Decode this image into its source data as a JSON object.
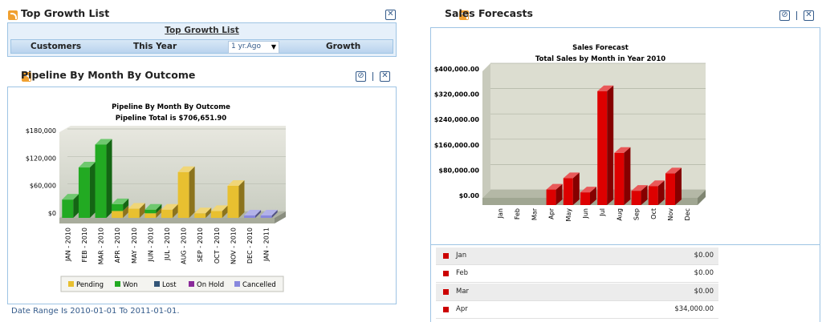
{
  "top_growth": {
    "title": "Top Growth List",
    "link": "Top Growth List",
    "col_customers": "Customers",
    "col_this_year": "This Year",
    "select_value": "1 yr.Ago",
    "col_growth": "Growth"
  },
  "pipeline": {
    "title": "Pipeline By Month By Outcome",
    "date_range": "Date Range Is 2010-01-01 To 2011-01-01."
  },
  "sales": {
    "title": "Sales Forecasts"
  },
  "forecast_rows": [
    {
      "month": "Jan",
      "value": "$0.00"
    },
    {
      "month": "Feb",
      "value": "$0.00"
    },
    {
      "month": "Mar",
      "value": "$0.00"
    },
    {
      "month": "Apr",
      "value": "$34,000.00"
    }
  ],
  "chart_data": [
    {
      "type": "bar",
      "title": "Pipeline By Month By Outcome",
      "subtitle": "Pipeline Total is $706,651.90",
      "categories": [
        "JAN - 2010",
        "FEB - 2010",
        "MAR - 2010",
        "APR - 2010",
        "MAY - 2010",
        "JUN - 2010",
        "JUL - 2010",
        "AUG - 2010",
        "SEP - 2010",
        "OCT - 2010",
        "NOV - 2010",
        "DEC - 2010",
        "JAN - 2011"
      ],
      "stacked": true,
      "series": [
        {
          "name": "Pending",
          "color": "#e8c030",
          "values": [
            0,
            0,
            0,
            15000,
            20000,
            10000,
            18000,
            100000,
            10000,
            15000,
            70000,
            0,
            0
          ]
        },
        {
          "name": "Won",
          "color": "#22aa22",
          "values": [
            40000,
            110000,
            160000,
            15000,
            0,
            8000,
            0,
            0,
            0,
            0,
            0,
            0,
            0
          ]
        },
        {
          "name": "Lost",
          "color": "#335577",
          "values": [
            0,
            0,
            0,
            0,
            0,
            0,
            0,
            0,
            0,
            0,
            0,
            0,
            0
          ]
        },
        {
          "name": "On Hold",
          "color": "#8a2a9a",
          "values": [
            0,
            0,
            0,
            0,
            0,
            0,
            0,
            0,
            0,
            0,
            0,
            0,
            0
          ]
        },
        {
          "name": "Cancelled",
          "color": "#8888dd",
          "values": [
            0,
            0,
            0,
            0,
            0,
            0,
            0,
            0,
            0,
            0,
            0,
            0,
            0
          ]
        }
      ],
      "ylim": [
        0,
        180000
      ],
      "yticks": [
        "$0",
        "$60,000",
        "$120,000",
        "$180,000"
      ],
      "ytick_values": [
        0,
        60000,
        120000,
        180000
      ],
      "legend": "bottom",
      "grid": true
    },
    {
      "type": "bar",
      "title": "Sales Forecast",
      "subtitle": "Total Sales by Month in Year 2010",
      "categories": [
        "Jan",
        "Feb",
        "Mar",
        "Apr",
        "May",
        "Jun",
        "Jul",
        "Aug",
        "Sep",
        "Oct",
        "Nov",
        "Dec"
      ],
      "series": [
        {
          "color": "#dd0000",
          "values": [
            0,
            0,
            0,
            34000,
            70000,
            25000,
            345000,
            150000,
            30000,
            45000,
            85000,
            0
          ]
        }
      ],
      "ylim": [
        0,
        400000
      ],
      "yticks": [
        "$0.00",
        "$80,000.00",
        "$160,000.00",
        "$240,000.00",
        "$320,000.00",
        "$400,000.00"
      ],
      "ytick_values": [
        0,
        80000,
        160000,
        240000,
        320000,
        400000
      ],
      "grid": true
    }
  ]
}
